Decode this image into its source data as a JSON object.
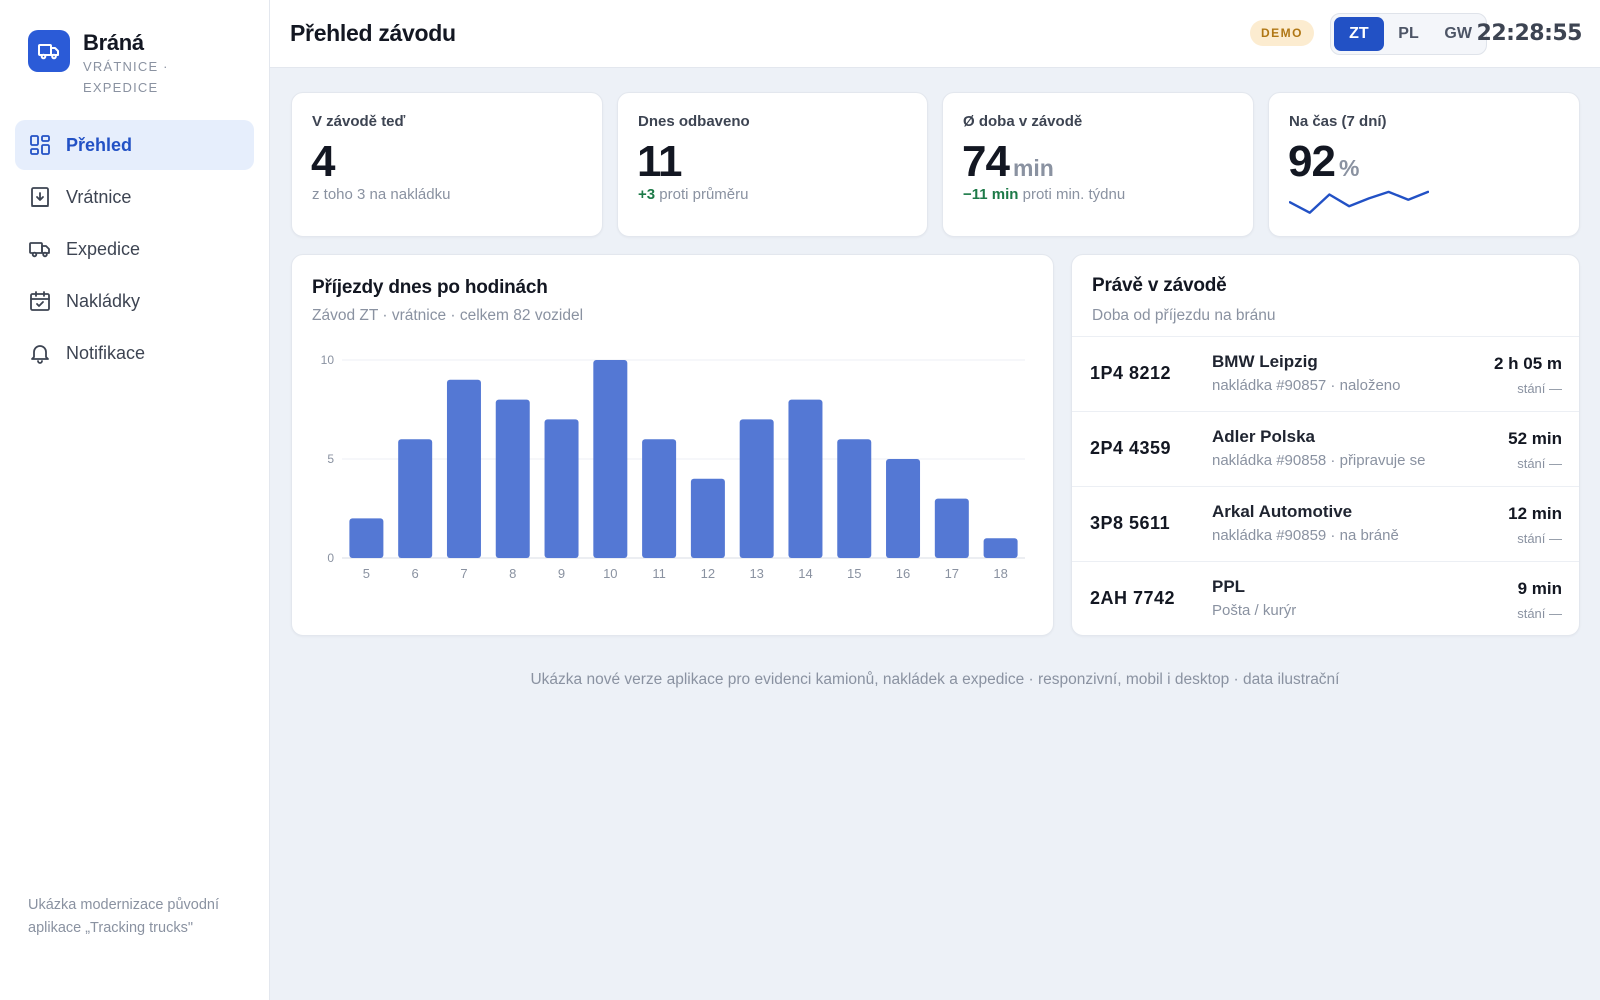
{
  "brand": {
    "name": "Bráná",
    "subtitle": "VRÁTNICE · EXPEDICE"
  },
  "nav": {
    "items": [
      {
        "label": "Přehled",
        "icon": "dashboard-icon",
        "active": true
      },
      {
        "label": "Vrátnice",
        "icon": "gate-icon"
      },
      {
        "label": "Expedice",
        "icon": "truck-icon"
      },
      {
        "label": "Nakládky",
        "icon": "calendar-check-icon"
      },
      {
        "label": "Notifikace",
        "icon": "bell-icon"
      }
    ]
  },
  "sidebar_footer": "Ukázka modernizace původní aplikace „Tracking trucks\"",
  "header": {
    "title": "Přehled závodu",
    "badge": "DEMO",
    "plants": [
      "ZT",
      "PL",
      "GW"
    ],
    "selected_plant": "ZT",
    "clock": "22:28:55"
  },
  "kpis": [
    {
      "label": "V závodě teď",
      "value": "4",
      "unit": "",
      "sub_prefix": "",
      "sub": "z toho 3 na nakládku"
    },
    {
      "label": "Dnes odbaveno",
      "value": "11",
      "unit": "",
      "sub_prefix": "+3",
      "sub": " proti průměru"
    },
    {
      "label": "Ø doba v závodě",
      "value": "74",
      "unit": "min",
      "sub_prefix": "−11 min",
      "sub": " proti min. týdnu"
    },
    {
      "label": "Na čas (7 dní)",
      "value": "92",
      "unit": "%",
      "sub_prefix": "",
      "sub": ""
    }
  ],
  "sparkline": [
    0.45,
    0.05,
    0.75,
    0.3,
    0.6,
    0.85,
    0.55,
    0.85
  ],
  "colors": {
    "accent": "#2251c5",
    "bar": "#5478d4",
    "positive": "#1d7a48",
    "badge_bg": "#fcecd0",
    "badge_fg": "#b07715"
  },
  "arrivals_panel": {
    "title": "Příjezdy dnes po hodinách",
    "subtitle": "Závod ZT · vrátnice · celkem 82 vozidel"
  },
  "chart_data": {
    "type": "bar",
    "categories": [
      "5",
      "6",
      "7",
      "8",
      "9",
      "10",
      "11",
      "12",
      "13",
      "14",
      "15",
      "16",
      "17",
      "18"
    ],
    "values": [
      2,
      6,
      9,
      8,
      7,
      10,
      6,
      4,
      7,
      8,
      6,
      5,
      3,
      1
    ],
    "title": "Příjezdy dnes po hodinách",
    "xlabel": "",
    "ylabel": "",
    "ylim": [
      0,
      10
    ],
    "yticks": [
      0,
      5,
      10
    ],
    "grid": true
  },
  "on_site_panel": {
    "title": "Právě v závodě",
    "subtitle": "Doba od příjezdu na bránu",
    "rows": [
      {
        "plate": "1P4 8212",
        "company": "BMW Leipzig",
        "detail": "nakládka #90857 · naloženo",
        "duration": "2 h 05 m",
        "status": "stání —"
      },
      {
        "plate": "2P4 4359",
        "company": "Adler Polska",
        "detail": "nakládka #90858 · připravuje se",
        "duration": "52 min",
        "status": "stání —"
      },
      {
        "plate": "3P8 5611",
        "company": "Arkal Automotive",
        "detail": "nakládka #90859 · na bráně",
        "duration": "12 min",
        "status": "stání —"
      },
      {
        "plate": "2AH 7742",
        "company": "PPL",
        "detail": "Pošta / kurýr",
        "duration": "9 min",
        "status": "stání —"
      }
    ]
  },
  "footer_note": "Ukázka nové verze aplikace pro evidenci kamionů, nakládek a expedice · responzivní, mobil i desktop · data ilustrační"
}
